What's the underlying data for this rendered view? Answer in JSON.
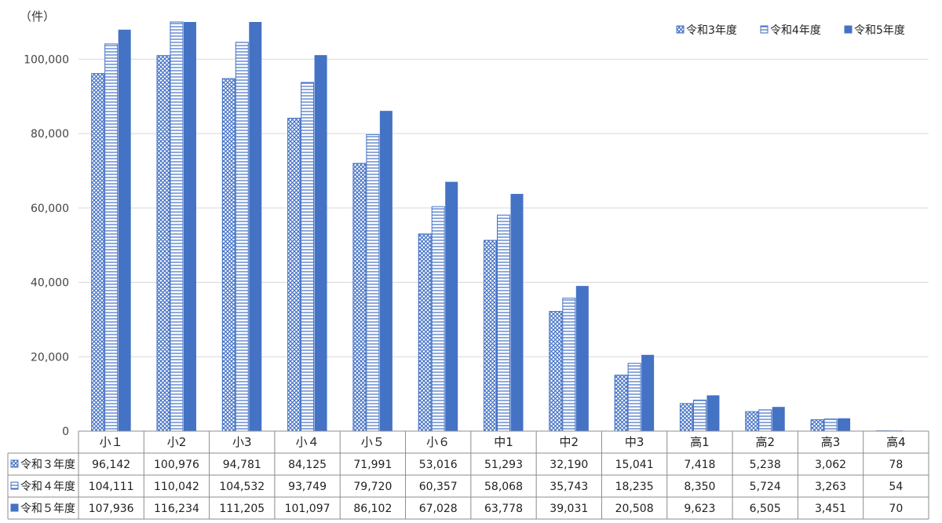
{
  "chart_data": {
    "type": "bar",
    "unit_label": "（件）",
    "categories": [
      "小１",
      "小2",
      "小3",
      "小４",
      "小５",
      "小６",
      "中1",
      "中2",
      "中3",
      "高1",
      "高2",
      "高3",
      "高4"
    ],
    "ylim": [
      0,
      110000
    ],
    "yticks": [
      0,
      20000,
      40000,
      60000,
      80000,
      100000
    ],
    "ytick_labels": [
      "0",
      "20,000",
      "40,000",
      "60,000",
      "80,000",
      "100,000"
    ],
    "grid": true,
    "legend_position": "top-right",
    "legend": [
      "令和3年度",
      "令和4年度",
      "令和5年度"
    ],
    "table_labels": [
      "令和３年度",
      "令和４年度",
      "令和５年度"
    ],
    "series": [
      {
        "name": "令和3年度",
        "pattern": "crosshatch",
        "color": "#4472c4",
        "values": [
          96142,
          100976,
          94781,
          84125,
          71991,
          53016,
          51293,
          32190,
          15041,
          7418,
          5238,
          3062,
          78
        ],
        "labels": [
          "96,142",
          "100,976",
          "94,781",
          "84,125",
          "71,991",
          "53,016",
          "51,293",
          "32,190",
          "15,041",
          "7,418",
          "5,238",
          "3,062",
          "78"
        ]
      },
      {
        "name": "令和4年度",
        "pattern": "horizontal-lines",
        "color": "#4472c4",
        "values": [
          104111,
          110042,
          104532,
          93749,
          79720,
          60357,
          58068,
          35743,
          18235,
          8350,
          5724,
          3263,
          54
        ],
        "labels": [
          "104,111",
          "110,042",
          "104,532",
          "93,749",
          "79,720",
          "60,357",
          "58,068",
          "35,743",
          "18,235",
          "8,350",
          "5,724",
          "3,263",
          "54"
        ]
      },
      {
        "name": "令和5年度",
        "pattern": "solid",
        "color": "#4472c4",
        "values": [
          107936,
          116234,
          111205,
          101097,
          86102,
          67028,
          63778,
          39031,
          20508,
          9623,
          6505,
          3451,
          70
        ],
        "labels": [
          "107,936",
          "116,234",
          "111,205",
          "101,097",
          "86,102",
          "67,028",
          "63,778",
          "39,031",
          "20,508",
          "9,623",
          "6,505",
          "3,451",
          "70"
        ]
      }
    ]
  }
}
